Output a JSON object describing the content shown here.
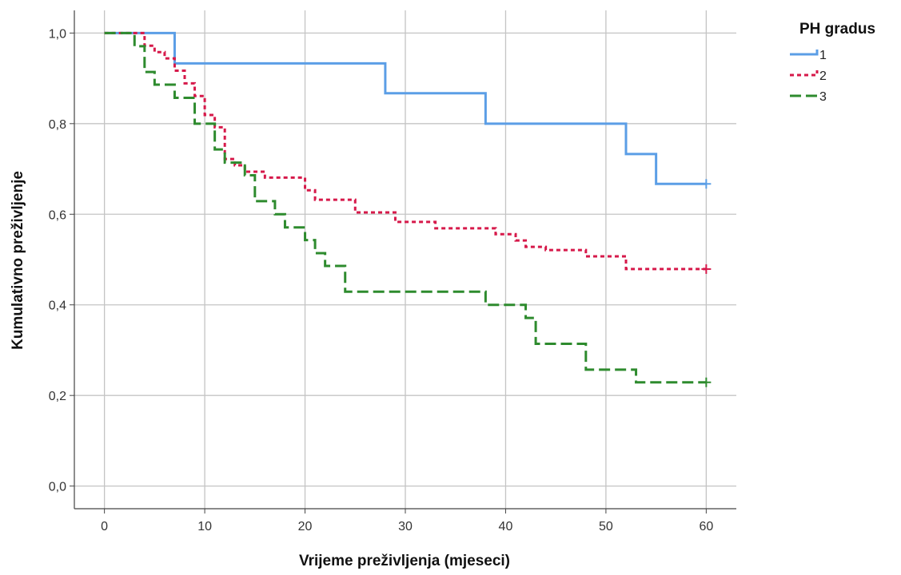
{
  "chart_data": {
    "type": "line",
    "step": "post",
    "xlabel": "Vrijeme preživljenja (mjeseci)",
    "ylabel": "Kumulativno preživljenje",
    "xlim": [
      -3,
      63
    ],
    "ylim": [
      -0.05,
      1.05
    ],
    "x_ticks": [
      0,
      10,
      20,
      30,
      40,
      50,
      60
    ],
    "y_ticks": [
      0.0,
      0.2,
      0.4,
      0.6,
      0.8,
      1.0
    ],
    "x_tick_labels": [
      "0",
      "10",
      "20",
      "30",
      "40",
      "50",
      "60"
    ],
    "y_tick_labels": [
      "0,0",
      "0,2",
      "0,4",
      "0,6",
      "0,8",
      "1,0"
    ],
    "grid": true,
    "legend": {
      "title": "PH gradus",
      "placement": "top-right-outside"
    },
    "series": [
      {
        "name": "1",
        "color": "#5b9ee6",
        "style": "solid",
        "x": [
          0,
          7,
          28,
          38,
          52,
          55,
          60
        ],
        "y": [
          1.0,
          0.933,
          0.867,
          0.8,
          0.733,
          0.667,
          0.667
        ],
        "censored_x": [
          60
        ],
        "censored_y": [
          0.667
        ]
      },
      {
        "name": "2",
        "color": "#d6194a",
        "style": "dotted",
        "x": [
          0,
          4,
          5,
          6,
          7,
          8,
          9,
          10,
          11,
          12,
          13,
          14,
          16,
          20,
          21,
          25,
          29,
          33,
          39,
          41,
          42,
          44,
          48,
          52,
          60
        ],
        "y": [
          1.0,
          0.972,
          0.958,
          0.944,
          0.917,
          0.889,
          0.861,
          0.819,
          0.792,
          0.722,
          0.708,
          0.694,
          0.681,
          0.653,
          0.632,
          0.604,
          0.583,
          0.569,
          0.556,
          0.542,
          0.528,
          0.521,
          0.507,
          0.479,
          0.479
        ],
        "censored_x": [
          60
        ],
        "censored_y": [
          0.479
        ]
      },
      {
        "name": "3",
        "color": "#2e8b2e",
        "style": "dashed",
        "x": [
          0,
          3,
          4,
          5,
          7,
          9,
          11,
          12,
          14,
          15,
          17,
          18,
          20,
          21,
          22,
          24,
          38,
          42,
          43,
          48,
          53,
          60
        ],
        "y": [
          1.0,
          0.971,
          0.914,
          0.886,
          0.857,
          0.8,
          0.743,
          0.714,
          0.686,
          0.629,
          0.6,
          0.571,
          0.543,
          0.514,
          0.486,
          0.429,
          0.4,
          0.371,
          0.314,
          0.257,
          0.229,
          0.229
        ],
        "censored_x": [
          60
        ],
        "censored_y": [
          0.229
        ]
      }
    ]
  }
}
